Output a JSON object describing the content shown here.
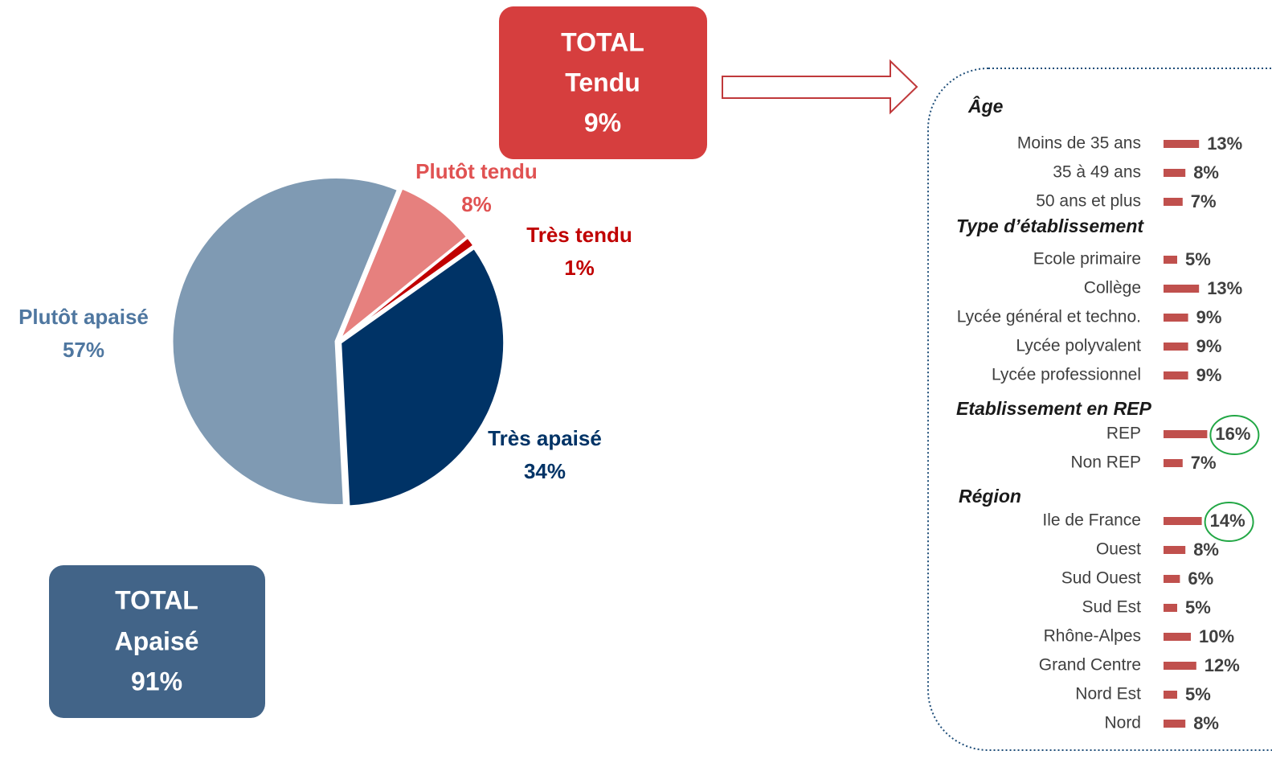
{
  "chart_data": [
    {
      "type": "pie",
      "categories": [
        "Très apaisé",
        "Plutôt apaisé",
        "Plutôt tendu",
        "Très tendu"
      ],
      "values": [
        34,
        57,
        8,
        1
      ],
      "value_labels": [
        "34%",
        "57%",
        "8%",
        "1%"
      ],
      "colors": [
        "#003366",
        "#7f9ab3",
        "#e6807e",
        "#c00000"
      ],
      "label_colors": [
        "#003366",
        "#4f77a0",
        "#e05252",
        "#c00000"
      ]
    },
    {
      "type": "bar",
      "color": "#c0504d",
      "groups": [
        {
          "name": "Âge",
          "categories": [
            "Moins de 35 ans",
            "35 à 49 ans",
            "50 ans et plus"
          ],
          "values": [
            13,
            8,
            7
          ],
          "value_labels": [
            "13%",
            "8%",
            "7%"
          ],
          "circled": [
            false,
            false,
            false
          ]
        },
        {
          "name": "Type d’établissement",
          "categories": [
            "Ecole primaire",
            "Collège",
            "Lycée général et techno.",
            "Lycée polyvalent",
            "Lycée professionnel"
          ],
          "values": [
            5,
            13,
            9,
            9,
            9
          ],
          "value_labels": [
            "5%",
            "13%",
            "9%",
            "9%",
            "9%"
          ],
          "circled": [
            false,
            false,
            false,
            false,
            false
          ]
        },
        {
          "name": "Etablissement en REP",
          "categories": [
            "REP",
            "Non REP"
          ],
          "values": [
            16,
            7
          ],
          "value_labels": [
            "16%",
            "7%"
          ],
          "circled": [
            true,
            false
          ]
        },
        {
          "name": "Région",
          "categories": [
            "Ile de France",
            "Ouest",
            "Sud Ouest",
            "Sud Est",
            "Rhône-Alpes",
            "Grand Centre",
            "Nord Est",
            "Nord"
          ],
          "values": [
            14,
            8,
            6,
            5,
            10,
            12,
            5,
            8
          ],
          "value_labels": [
            "14%",
            "8%",
            "6%",
            "5%",
            "10%",
            "12%",
            "5%",
            "8%"
          ],
          "circled": [
            true,
            false,
            false,
            false,
            false,
            false,
            false,
            false
          ]
        }
      ]
    }
  ],
  "totals": [
    {
      "lines": [
        "TOTAL",
        "Tendu",
        "9%"
      ]
    },
    {
      "lines": [
        "TOTAL",
        "Apaisé",
        "91%"
      ]
    }
  ]
}
